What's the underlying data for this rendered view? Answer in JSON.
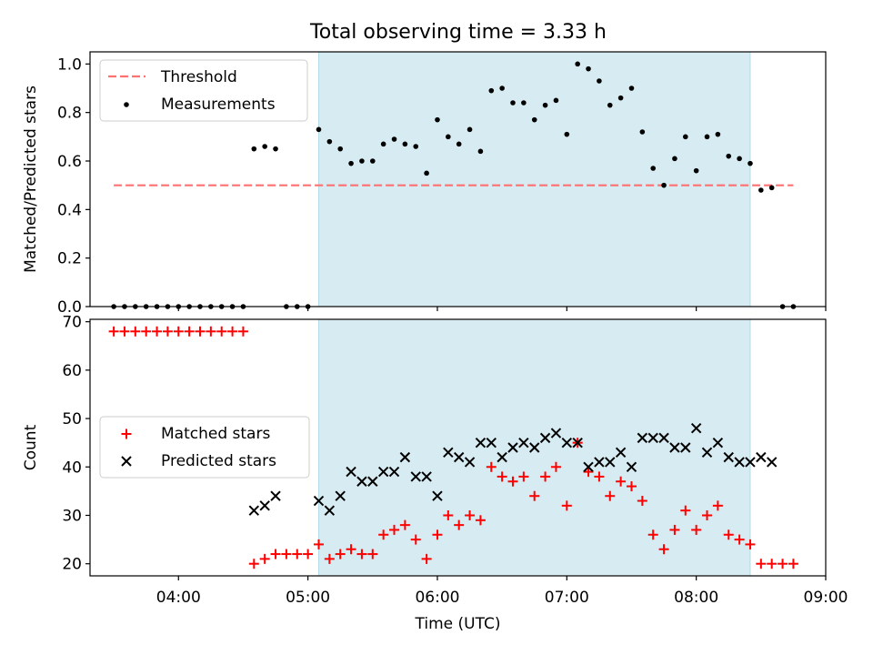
{
  "title": "Total observing time = 3.33 h",
  "colors": {
    "threshold": "#ff7070",
    "measurements": "#000000",
    "matched": "#ff0000",
    "predicted": "#000000",
    "observing_window": "#add8e6"
  },
  "chart_data": [
    {
      "type": "scatter",
      "panel": "top",
      "ylabel": "Matched/Predicted stars",
      "xlim": [
        "03:19",
        "09:00"
      ],
      "ylim": [
        0,
        1.05
      ],
      "yticks": [
        0.0,
        0.2,
        0.4,
        0.6,
        0.8,
        1.0
      ],
      "ytick_labels": [
        "0.0",
        "0.2",
        "0.4",
        "0.6",
        "0.8",
        "1.0"
      ],
      "observing_window": [
        "05:05",
        "08:25"
      ],
      "legend": {
        "placement": "top-left",
        "entries": [
          "Threshold",
          "Measurements"
        ]
      },
      "threshold": {
        "name": "Threshold",
        "y": 0.5,
        "x_range": [
          "03:30",
          "08:45"
        ]
      },
      "series": [
        {
          "name": "Measurements",
          "marker": "dot",
          "x": [
            "03:30",
            "03:35",
            "03:40",
            "03:45",
            "03:50",
            "03:55",
            "04:00",
            "04:05",
            "04:10",
            "04:15",
            "04:20",
            "04:25",
            "04:30",
            "04:35",
            "04:40",
            "04:45",
            "04:50",
            "04:55",
            "05:00",
            "05:05",
            "05:10",
            "05:15",
            "05:20",
            "05:25",
            "05:30",
            "05:35",
            "05:40",
            "05:45",
            "05:50",
            "05:55",
            "06:00",
            "06:05",
            "06:10",
            "06:15",
            "06:20",
            "06:25",
            "06:30",
            "06:35",
            "06:40",
            "06:45",
            "06:50",
            "06:55",
            "07:00",
            "07:05",
            "07:10",
            "07:15",
            "07:20",
            "07:25",
            "07:30",
            "07:35",
            "07:40",
            "07:45",
            "07:50",
            "07:55",
            "08:00",
            "08:05",
            "08:10",
            "08:15",
            "08:20",
            "08:25",
            "08:30",
            "08:35",
            "08:40",
            "08:45"
          ],
          "y": [
            0,
            0,
            0,
            0,
            0,
            0,
            0,
            0,
            0,
            0,
            0,
            0,
            0,
            0.65,
            0.66,
            0.65,
            0,
            0,
            0,
            0.73,
            0.68,
            0.65,
            0.59,
            0.6,
            0.6,
            0.67,
            0.69,
            0.67,
            0.66,
            0.55,
            0.77,
            0.7,
            0.67,
            0.73,
            0.64,
            0.89,
            0.9,
            0.84,
            0.84,
            0.77,
            0.83,
            0.85,
            0.71,
            1.0,
            0.98,
            0.93,
            0.83,
            0.86,
            0.9,
            0.72,
            0.57,
            0.5,
            0.61,
            0.7,
            0.56,
            0.7,
            0.71,
            0.62,
            0.61,
            0.59,
            0.48,
            0.49,
            0,
            0
          ]
        }
      ]
    },
    {
      "type": "scatter",
      "panel": "bottom",
      "xlabel": "Time (UTC)",
      "ylabel": "Count",
      "xlim": [
        "03:19",
        "09:00"
      ],
      "ylim": [
        17.5,
        70.5
      ],
      "yticks": [
        20,
        30,
        40,
        50,
        60,
        70
      ],
      "ytick_labels": [
        "20",
        "30",
        "40",
        "50",
        "60",
        "70"
      ],
      "xticks": [
        "04:00",
        "05:00",
        "06:00",
        "07:00",
        "08:00",
        "09:00"
      ],
      "xtick_labels": [
        "04:00",
        "05:00",
        "06:00",
        "07:00",
        "08:00",
        "09:00"
      ],
      "observing_window": [
        "05:05",
        "08:25"
      ],
      "legend": {
        "placement": "center-left",
        "entries": [
          "Matched stars",
          "Predicted stars"
        ]
      },
      "series": [
        {
          "name": "Matched stars",
          "marker": "plus",
          "x": [
            "03:30",
            "03:35",
            "03:40",
            "03:45",
            "03:50",
            "03:55",
            "04:00",
            "04:05",
            "04:10",
            "04:15",
            "04:20",
            "04:25",
            "04:30",
            "04:35",
            "04:40",
            "04:45",
            "04:50",
            "04:55",
            "05:00",
            "05:05",
            "05:10",
            "05:15",
            "05:20",
            "05:25",
            "05:30",
            "05:35",
            "05:40",
            "05:45",
            "05:50",
            "05:55",
            "06:00",
            "06:05",
            "06:10",
            "06:15",
            "06:20",
            "06:25",
            "06:30",
            "06:35",
            "06:40",
            "06:45",
            "06:50",
            "06:55",
            "07:00",
            "07:05",
            "07:10",
            "07:15",
            "07:20",
            "07:25",
            "07:30",
            "07:35",
            "07:40",
            "07:45",
            "07:50",
            "07:55",
            "08:00",
            "08:05",
            "08:10",
            "08:15",
            "08:20",
            "08:25",
            "08:30",
            "08:35",
            "08:40",
            "08:45"
          ],
          "y": [
            68,
            68,
            68,
            68,
            68,
            68,
            68,
            68,
            68,
            68,
            68,
            68,
            68,
            20,
            21,
            22,
            22,
            22,
            22,
            24,
            21,
            22,
            23,
            22,
            22,
            26,
            27,
            28,
            25,
            21,
            26,
            30,
            28,
            30,
            29,
            40,
            38,
            37,
            38,
            34,
            38,
            40,
            32,
            45,
            39,
            38,
            34,
            37,
            36,
            33,
            26,
            23,
            27,
            31,
            27,
            30,
            32,
            26,
            25,
            24,
            20,
            20,
            20,
            20
          ]
        },
        {
          "name": "Predicted stars",
          "marker": "x",
          "x": [
            "04:35",
            "04:40",
            "04:45",
            "05:05",
            "05:10",
            "05:15",
            "05:20",
            "05:25",
            "05:30",
            "05:35",
            "05:40",
            "05:45",
            "05:50",
            "05:55",
            "06:00",
            "06:05",
            "06:10",
            "06:15",
            "06:20",
            "06:25",
            "06:30",
            "06:35",
            "06:40",
            "06:45",
            "06:50",
            "06:55",
            "07:00",
            "07:05",
            "07:10",
            "07:15",
            "07:20",
            "07:25",
            "07:30",
            "07:35",
            "07:40",
            "07:45",
            "07:50",
            "07:55",
            "08:00",
            "08:05",
            "08:10",
            "08:15",
            "08:20",
            "08:25",
            "08:30",
            "08:35"
          ],
          "y": [
            31,
            32,
            34,
            33,
            31,
            34,
            39,
            37,
            37,
            39,
            39,
            42,
            38,
            38,
            34,
            43,
            42,
            41,
            45,
            45,
            42,
            44,
            45,
            44,
            46,
            47,
            45,
            45,
            40,
            41,
            41,
            43,
            40,
            46,
            46,
            46,
            44,
            44,
            48,
            43,
            45,
            42,
            41,
            41,
            42,
            41
          ]
        }
      ]
    }
  ]
}
